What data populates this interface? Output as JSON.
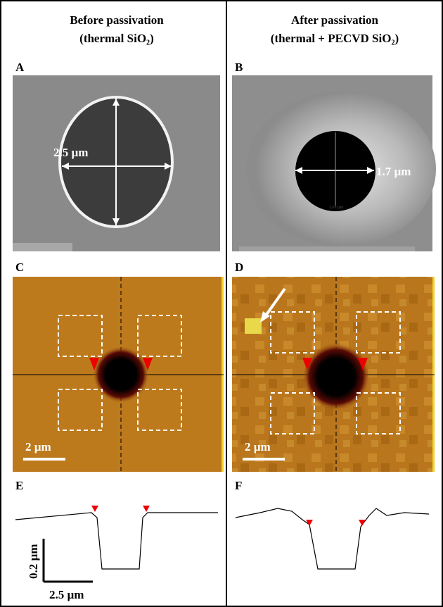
{
  "columns": [
    {
      "title": "Before passivation",
      "subtitle": "(thermal SiO₂)"
    },
    {
      "title": "After passivation",
      "subtitle": "(thermal + PECVD SiO₂)"
    }
  ],
  "panels": [
    {
      "label": "A",
      "annotations": [
        "2.5 µm"
      ]
    },
    {
      "label": "B",
      "annotations": [
        "1.7 µm",
        "1.69 µm"
      ]
    },
    {
      "label": "C",
      "annotations": [
        "2 µm"
      ]
    },
    {
      "label": "D",
      "annotations": [
        "2 µm"
      ]
    },
    {
      "label": "E",
      "annotations": [
        "0.2 µm",
        "2.5 µm"
      ]
    },
    {
      "label": "F",
      "annotations": []
    }
  ]
}
